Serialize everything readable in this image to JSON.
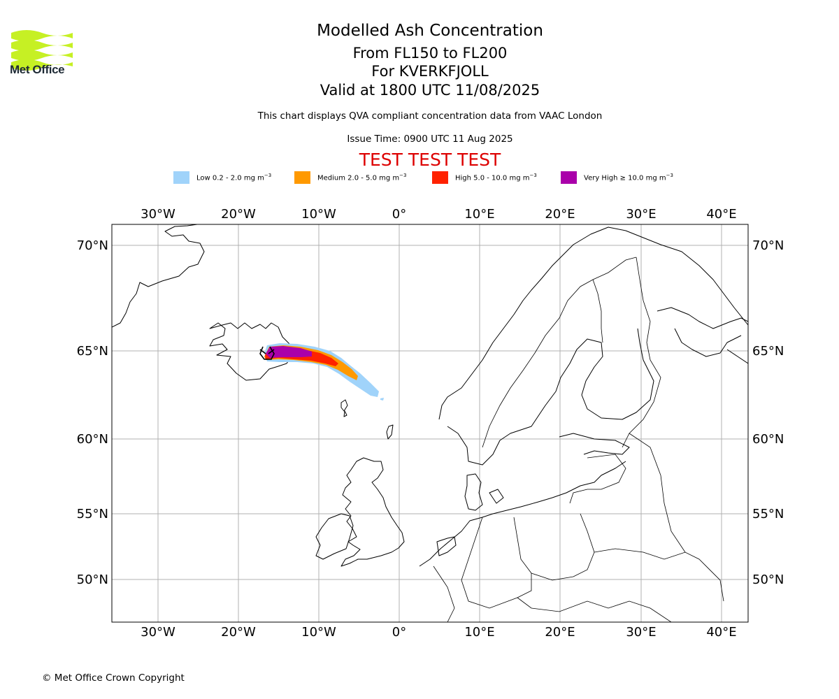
{
  "header": {
    "logo_text": "Met Office",
    "title": "Modelled Ash Concentration",
    "subtitle_levels": "From FL150 to FL200",
    "subtitle_volcano": "For KVERKFJOLL",
    "subtitle_valid": "Valid at 1800 UTC 11/08/2025",
    "description": "This chart displays QVA compliant concentration data from VAAC London",
    "issue_time": "Issue Time: 0900 UTC 11 Aug 2025",
    "test_banner": "TEST TEST TEST"
  },
  "legend": [
    {
      "label": "Low 0.2 - 2.0 mg m",
      "color": "#a0d3fa"
    },
    {
      "label": "Medium 2.0 - 5.0 mg m",
      "color": "#ff9900"
    },
    {
      "label": "High 5.0 - 10.0 mg m",
      "color": "#ff2200"
    },
    {
      "label": "Very High ≥ 10.0 mg m",
      "color": "#aa00aa"
    }
  ],
  "legend_unit_exponent": "−3",
  "map": {
    "lon_labels": [
      "30°W",
      "20°W",
      "10°W",
      "0°",
      "10°E",
      "20°E",
      "30°E",
      "40°E"
    ],
    "lat_labels": [
      "70°N",
      "65°N",
      "60°N",
      "55°N",
      "50°N"
    ],
    "volcano_marker": "volcano-triangle"
  },
  "footer": {
    "copyright": "© Met Office Crown Copyright"
  }
}
